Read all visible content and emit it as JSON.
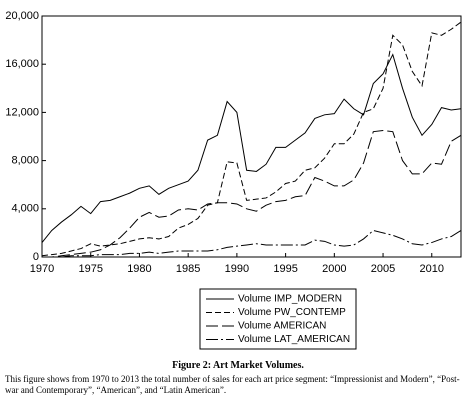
{
  "chart_data": {
    "type": "line",
    "x": [
      1970,
      1971,
      1972,
      1973,
      1974,
      1975,
      1976,
      1977,
      1978,
      1979,
      1980,
      1981,
      1982,
      1983,
      1984,
      1985,
      1986,
      1987,
      1988,
      1989,
      1990,
      1991,
      1992,
      1993,
      1994,
      1995,
      1996,
      1997,
      1998,
      1999,
      2000,
      2001,
      2002,
      2003,
      2004,
      2005,
      2006,
      2007,
      2008,
      2009,
      2010,
      2011,
      2012,
      2013
    ],
    "xlim": [
      1970,
      2013
    ],
    "xticks": [
      1970,
      1975,
      1980,
      1985,
      1990,
      1995,
      2000,
      2005,
      2010
    ],
    "ylim": [
      0,
      20000
    ],
    "yticks": [
      0,
      {
        "value": 4000,
        "label": "4,000"
      },
      {
        "value": 8000,
        "label": "8,000"
      },
      {
        "value": 12000,
        "label": "12,000"
      },
      {
        "value": 16000,
        "label": "16,000"
      },
      {
        "value": 20000,
        "label": "20,000"
      }
    ],
    "legend_position": "bottom",
    "series": [
      {
        "name": "Volume IMP_MODERN",
        "color": "#000000",
        "dash": "solid",
        "values": [
          1200,
          2200,
          2900,
          3500,
          4200,
          3600,
          4600,
          4700,
          5000,
          5300,
          5700,
          5900,
          5200,
          5700,
          6000,
          6300,
          7200,
          9700,
          10100,
          12900,
          12000,
          7200,
          7100,
          7700,
          9100,
          9100,
          9700,
          10300,
          11500,
          11800,
          11900,
          13100,
          12300,
          11800,
          14400,
          15200,
          16800,
          14000,
          11600,
          10100,
          11000,
          12400,
          12200,
          12300
        ]
      },
      {
        "name": "Volume PW_CONTEMP",
        "color": "#000000",
        "dash": "dashed",
        "values": [
          100,
          200,
          300,
          500,
          700,
          1100,
          900,
          1000,
          1100,
          1300,
          1500,
          1600,
          1500,
          1700,
          2400,
          2700,
          3200,
          4300,
          4500,
          7900,
          7800,
          4700,
          4800,
          4900,
          5400,
          6100,
          6300,
          7200,
          7400,
          8200,
          9400,
          9400,
          10200,
          12000,
          12300,
          14000,
          18400,
          17600,
          15400,
          14200,
          18600,
          18400,
          18900,
          19500
        ]
      },
      {
        "name": "Volume AMERICAN",
        "color": "#000000",
        "dash": "longdash",
        "values": [
          0,
          0,
          100,
          200,
          300,
          400,
          600,
          1000,
          1600,
          2400,
          3300,
          3700,
          3300,
          3400,
          3900,
          4000,
          3900,
          4400,
          4500,
          4500,
          4400,
          4000,
          3800,
          4300,
          4600,
          4700,
          5000,
          5100,
          6600,
          6300,
          5900,
          5900,
          6400,
          7800,
          10400,
          10500,
          10400,
          8000,
          6900,
          6900,
          7800,
          7700,
          9600,
          10100
        ]
      },
      {
        "name": "Volume LAT_AMERICAN",
        "color": "#000000",
        "dash": "dashdot",
        "values": [
          0,
          0,
          0,
          100,
          100,
          100,
          200,
          200,
          200,
          300,
          300,
          400,
          300,
          400,
          500,
          500,
          500,
          500,
          600,
          800,
          900,
          1000,
          1100,
          1000,
          1000,
          1000,
          1000,
          1000,
          1400,
          1300,
          1000,
          900,
          1000,
          1500,
          2200,
          2000,
          1800,
          1500,
          1100,
          1000,
          1200,
          1500,
          1700,
          2200
        ]
      }
    ]
  },
  "caption": {
    "title": "Figure 2: Art Market Volumes.",
    "text": "This figure shows from 1970 to 2013 the total number of sales for each art price segment: “Impressionist and Modern”, “Post-war and Contemporary”, “American”, and “Latin American”."
  }
}
